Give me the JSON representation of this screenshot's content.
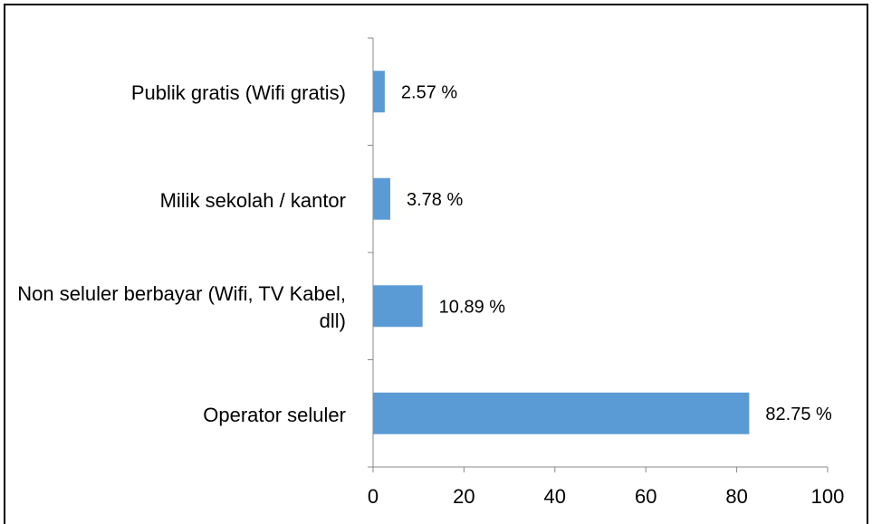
{
  "chart_data": {
    "type": "barh",
    "categories": [
      "Publik gratis (Wifi gratis)",
      "Milik sekolah / kantor",
      "Non seluler berbayar (Wifi, TV Kabel, dll)",
      "Operator seluler"
    ],
    "values": [
      2.57,
      3.78,
      10.89,
      82.75
    ],
    "value_labels": [
      "2.57 %",
      "3.78 %",
      "10.89 %",
      "82.75 %"
    ],
    "color": "#5b9bd5",
    "xlim": [
      0,
      100
    ],
    "xticks": [
      0,
      20,
      40,
      60,
      80,
      100
    ]
  }
}
